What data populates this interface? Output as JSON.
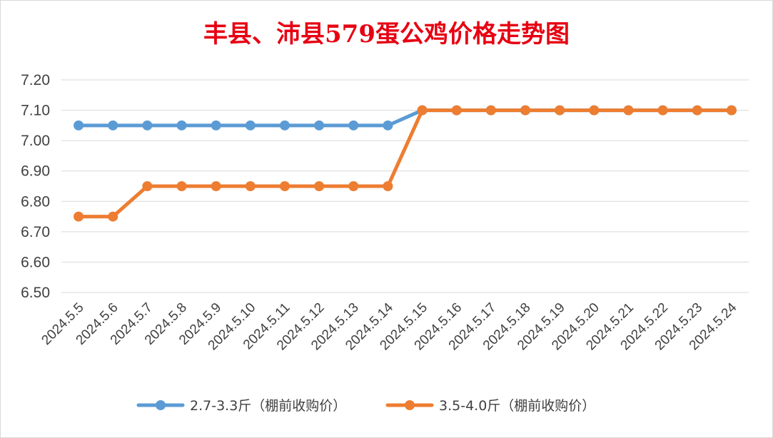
{
  "chart_data": {
    "type": "line",
    "title": "丰县、沛县579蛋公鸡价格走势图",
    "x": [
      "2024.5.5",
      "2024.5.6",
      "2024.5.7",
      "2024.5.8",
      "2024.5.9",
      "2024.5.10",
      "2024.5.11",
      "2024.5.12",
      "2024.5.13",
      "2024.5.14",
      "2024.5.15",
      "2024.5.16",
      "2024.5.17",
      "2024.5.18",
      "2024.5.19",
      "2024.5.20",
      "2024.5.21",
      "2024.5.22",
      "2024.5.23",
      "2024.5.24"
    ],
    "yticks": [
      "6.50",
      "6.60",
      "6.70",
      "6.80",
      "6.90",
      "7.00",
      "7.10",
      "7.20"
    ],
    "ylim": [
      6.5,
      7.2
    ],
    "grid": true,
    "legend_position": "bottom",
    "series": [
      {
        "name": "2.7-3.3斤（棚前收购价）",
        "color": "#5b9bd5",
        "values": [
          7.05,
          7.05,
          7.05,
          7.05,
          7.05,
          7.05,
          7.05,
          7.05,
          7.05,
          7.05,
          7.1,
          7.1,
          7.1,
          7.1,
          7.1,
          7.1,
          7.1,
          7.1,
          7.1,
          7.1
        ]
      },
      {
        "name": "3.5-4.0斤（棚前收购价）",
        "color": "#ed7d31",
        "values": [
          6.75,
          6.75,
          6.85,
          6.85,
          6.85,
          6.85,
          6.85,
          6.85,
          6.85,
          6.85,
          7.1,
          7.1,
          7.1,
          7.1,
          7.1,
          7.1,
          7.1,
          7.1,
          7.1,
          7.1
        ]
      }
    ]
  }
}
